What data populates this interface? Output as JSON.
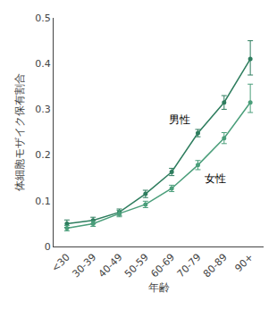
{
  "chart_data": {
    "type": "line",
    "categories": [
      "<30",
      "30-39",
      "40-49",
      "50-59",
      "60-69",
      "70-79",
      "80-89",
      "90+"
    ],
    "series": [
      {
        "name": "男性",
        "color": "#2e7d5e",
        "marker": "circle",
        "values": [
          0.05,
          0.057,
          0.075,
          0.115,
          0.163,
          0.248,
          0.315,
          0.41
        ],
        "yerr_lower": [
          0.008,
          0.007,
          0.007,
          0.008,
          0.008,
          0.008,
          0.015,
          0.035
        ],
        "yerr_upper": [
          0.008,
          0.007,
          0.007,
          0.008,
          0.008,
          0.008,
          0.015,
          0.04
        ]
      },
      {
        "name": "女性",
        "color": "#4a9e7a",
        "marker": "circle",
        "values": [
          0.04,
          0.05,
          0.072,
          0.092,
          0.127,
          0.178,
          0.237,
          0.315
        ],
        "yerr_lower": [
          0.006,
          0.006,
          0.007,
          0.007,
          0.007,
          0.01,
          0.012,
          0.022
        ],
        "yerr_upper": [
          0.006,
          0.006,
          0.007,
          0.007,
          0.007,
          0.01,
          0.012,
          0.04
        ]
      }
    ],
    "xlabel": "年齢",
    "ylabel": "体細胞モザイク保有割合",
    "ylim": [
      0,
      0.5
    ],
    "yticks": [
      0,
      0.1,
      0.2,
      0.3,
      0.4,
      0.5
    ],
    "grid": false
  }
}
